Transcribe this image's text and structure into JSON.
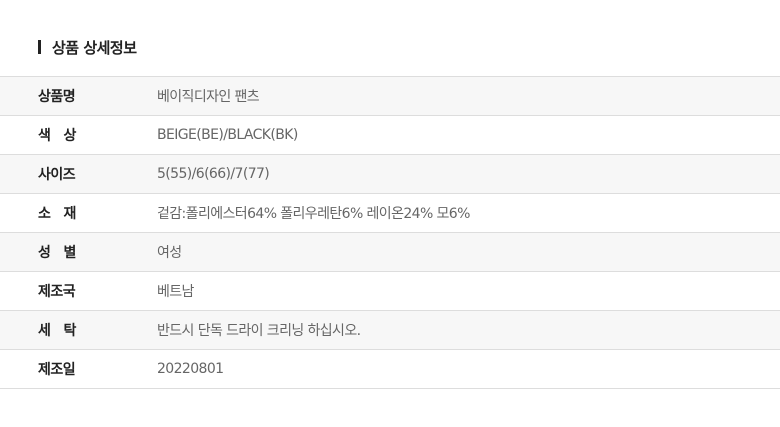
{
  "section": {
    "title": "상품 상세정보"
  },
  "rows": [
    {
      "label": "상품명",
      "value": "베이직디자인 팬츠"
    },
    {
      "label": "색   상",
      "value": "BEIGE(BE)/BLACK(BK)"
    },
    {
      "label": "사이즈",
      "value": "5(55)/6(66)/7(77)"
    },
    {
      "label": "소   재",
      "value": "겉감:폴리에스터64% 폴리우레탄6% 레이온24% 모6%"
    },
    {
      "label": "성   별",
      "value": "여성"
    },
    {
      "label": "제조국",
      "value": "베트남"
    },
    {
      "label": "세   탁",
      "value": "반드시 단독 드라이 크리닝 하십시오."
    },
    {
      "label": "제조일",
      "value": "20220801"
    }
  ]
}
